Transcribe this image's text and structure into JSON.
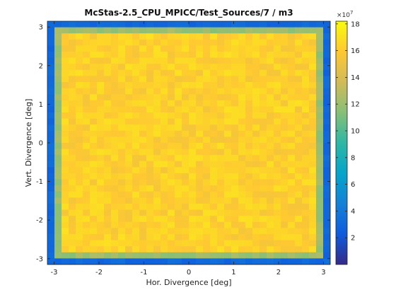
{
  "chart_data": {
    "type": "heatmap",
    "title": "McStas-2.5_CPU_MPICC/Test_Sources/7 / m3",
    "xlabel": "Hor. Divergence [deg]",
    "ylabel": "Vert. Divergence [deg]",
    "xlim": [
      -3.15,
      3.15
    ],
    "ylim": [
      -3.15,
      3.15
    ],
    "x_ticks": [
      "-3",
      "-2",
      "-1",
      "0",
      "1",
      "2",
      "3"
    ],
    "y_ticks": [
      "-3",
      "-2",
      "-1",
      "0",
      "1",
      "2",
      "3"
    ],
    "grid": false,
    "colormap": "parula",
    "grid_size": [
      40,
      40
    ],
    "interior_value_range": [
      155000000.0,
      170000000.0
    ],
    "edge_ring_value": 120000000.0,
    "outer_ring_value": 30000000.0,
    "colorbar": {
      "range": [
        0,
        182000000.0
      ],
      "ticks": [
        "2",
        "4",
        "6",
        "8",
        "10",
        "12",
        "14",
        "16",
        "18"
      ],
      "exponent": "×10",
      "exponent_power": "7"
    }
  }
}
